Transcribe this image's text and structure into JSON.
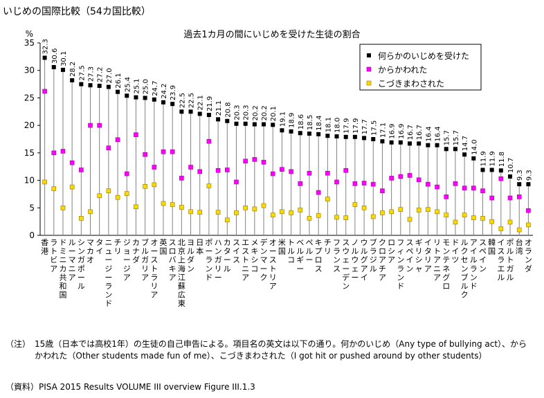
{
  "page_title": "いじめの国際比較（54カ国比較）",
  "note_label": "（注）",
  "note_text": "15歳（日本では高校1年）の生徒の自己申告による。項目名の英文は以下の通り。何かのいじめ（Any type of bullying act）、からかわれた（Other students made fun of me）、こづきまわされた（I got hit or pushed around by other students）",
  "source_text": "（資料）PISA 2015 Results VOLUME III overview Figure III.1.3",
  "chart_data": {
    "type": "scatter",
    "title": "過去1カ月の間にいじめを受けた生徒の割合",
    "ylabel": "%",
    "ylim": [
      0,
      35
    ],
    "yticks": [
      "0",
      "5",
      "10",
      "15",
      "20",
      "25",
      "30",
      "35"
    ],
    "grid": false,
    "legend_position": "top-right",
    "colors": {
      "series0": "#000000",
      "series1": "#ff00ff",
      "series2": "#ffd700",
      "stem": "#808080"
    },
    "categories": [
      "香港",
      "ラトビア",
      "ドミニカ共和国",
      "ルーマニア",
      "シンガポール",
      "マカオ",
      "タイ",
      "ニュージーランド",
      "チリ",
      "ジョージア",
      "カナダ",
      "ブルガリア",
      "オーストラリア",
      "英国",
      "スロバキア",
      "北京上海江蘇広東",
      "ヨルダン",
      "日本",
      "ポーランド",
      "ハンガリー",
      "カタール",
      "スイス",
      "エストニア",
      "メキシコ",
      "デンマーク",
      "オーストリア",
      "米国",
      "トルコ",
      "ベルギー",
      "ペルー",
      "キプロス",
      "チリ",
      "フランス",
      "スウェーデン",
      "ノルウェー",
      "ウルグアイ",
      "ブラジル",
      "ク口アチア",
      "ロシア",
      "フィンランド",
      "スペイン",
      "ギリシャ",
      "イタリア",
      "リトアニア",
      "モンテネグロ",
      "ドイツ",
      "ルクセンブルク",
      "アイルランド",
      "スペイン",
      "韓国",
      "イスラエル",
      "ポルトガル",
      "台湾",
      "オランダ"
    ],
    "category_labels": [
      "香港",
      "ラトビア",
      "ドミニカ共和国",
      "ルーマニア",
      "シンガポール",
      "マカオ",
      "タイ",
      "ニュージーランド",
      "チリ",
      "ジョージア",
      "カナダ",
      "ブルガリア",
      "オーストラリア",
      "英国",
      "スロバキア",
      "北京上海江蘇広東",
      "ヨルダン",
      "日本",
      "ポーランド",
      "ハンガリー",
      "カタール",
      "スイス",
      "エストニア",
      "メキシコ",
      "デンマーク",
      "オーストリア",
      "米国",
      "トルコ",
      "ベルギー",
      "ペルー",
      "キプロス",
      "チリ",
      "フランス",
      "スウェーデン",
      "ノルウェー",
      "ウルグアイ",
      "ブラジル",
      "クロアチア",
      "ロシア",
      "フィンランド",
      "スペイン",
      "ギリシャ",
      "イタリア",
      "リトアニア",
      "モンテネグロ",
      "ドイツ",
      "ルクセンブルク",
      "アイルランド",
      "スペイン",
      "韓国",
      "イスラエル",
      "ポルトガル",
      "台湾",
      "オランダ"
    ],
    "series": [
      {
        "name": "何らかのいじめを受けた",
        "marker": "square-filled",
        "labeled": true,
        "values": [
          32.3,
          30.6,
          30.1,
          28.2,
          27.5,
          27.3,
          27.2,
          27.0,
          26.1,
          25.4,
          25.1,
          25.0,
          24.7,
          24.2,
          23.9,
          22.5,
          22.5,
          22.1,
          21.9,
          21.1,
          20.8,
          20.3,
          20.3,
          20.2,
          20.2,
          20.1,
          19.1,
          18.9,
          18.6,
          18.5,
          18.4,
          18.1,
          18.0,
          17.9,
          17.9,
          17.7,
          17.5,
          17.1,
          16.9,
          16.9,
          16.7,
          16.7,
          16.4,
          16.4,
          15.7,
          15.7,
          14.7,
          14.0,
          11.9,
          11.9,
          11.8,
          10.7,
          9.3,
          9.3
        ]
      },
      {
        "name": "からかわれた",
        "marker": "square-magenta",
        "values": [
          26.2,
          15.0,
          15.3,
          13.2,
          11.9,
          20.0,
          20.0,
          15.9,
          17.4,
          11.2,
          18.3,
          14.7,
          12.4,
          15.2,
          15.2,
          10.4,
          12.4,
          11.6,
          17.1,
          11.8,
          11.9,
          9.7,
          13.5,
          13.8,
          13.3,
          11.2,
          12.0,
          11.6,
          9.4,
          11.3,
          7.8,
          11.3,
          9.7,
          11.8,
          9.4,
          9.5,
          9.3,
          8.1,
          10.4,
          10.7,
          10.9,
          10.1,
          9.3,
          8.8,
          7.0,
          9.4,
          8.6,
          8.6,
          8.1,
          6.8,
          10.3,
          6.8,
          7.0,
          4.5
        ]
      },
      {
        "name": "こづきまわされた",
        "marker": "square-yellow",
        "values": [
          9.7,
          8.5,
          5.0,
          8.8,
          3.1,
          4.3,
          7.2,
          8.1,
          6.9,
          7.6,
          5.2,
          8.9,
          9.2,
          5.8,
          5.6,
          5.1,
          4.3,
          4.2,
          9.0,
          4.2,
          2.8,
          4.1,
          5.0,
          4.8,
          5.4,
          3.7,
          4.3,
          4.1,
          4.6,
          3.1,
          3.6,
          6.6,
          3.3,
          3.2,
          5.6,
          5.0,
          3.4,
          4.1,
          4.3,
          4.7,
          2.9,
          4.6,
          4.7,
          4.3,
          3.7,
          2.4,
          3.7,
          3.2,
          3.1,
          2.5,
          1.2,
          2.4,
          1.0,
          1.9
        ]
      }
    ]
  }
}
